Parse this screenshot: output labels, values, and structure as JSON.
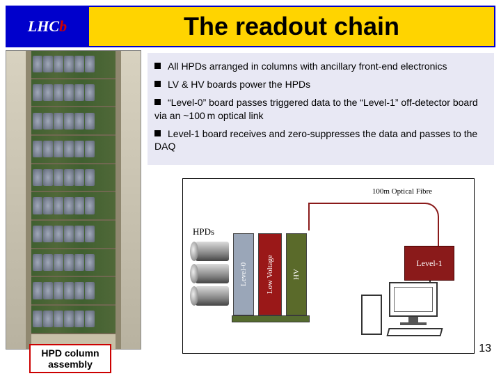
{
  "header": {
    "logo_main": "LHC",
    "logo_accent": "b",
    "title": "The readout chain"
  },
  "bullets": {
    "b1": "All HPDs arranged in columns with ancillary front-end electronics",
    "b2": "LV & HV boards power the HPDs",
    "b3": "“Level-0” board passes triggered data to the “Level-1” off-detector board via an ~100 m optical link",
    "b4": "Level-1 board receives and zero-suppresses the data and passes to the DAQ"
  },
  "photo": {
    "caption_line1": "HPD column",
    "caption_line2": "assembly"
  },
  "diagram": {
    "fibre": "100m Optical Fibre",
    "hpds": "HPDs",
    "level0": "Level-0",
    "lowvoltage": "Low Voltage",
    "hv": "HV",
    "level1": "Level-1"
  },
  "page": {
    "number": "13"
  },
  "styling": {
    "title_bg": "#ffd400",
    "title_border": "#0000cc",
    "logo_bg": "#0000cc",
    "bullets_bg": "#e8e8f4",
    "caption_border": "#cc0000",
    "lvl1_bg": "#8a1a1a",
    "lv_bg": "#9a1818",
    "l0_bg": "#9aa6b8",
    "hv_bg": "#5a6a2a",
    "title_fontsize": 36,
    "bullet_fontsize": 14
  }
}
